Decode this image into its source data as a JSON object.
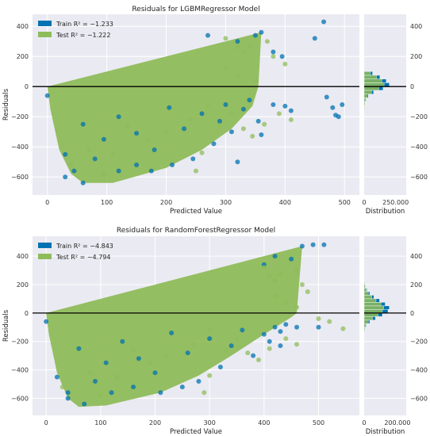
{
  "chart_data": [
    {
      "type": "scatter",
      "title": "Residuals for LGBMRegressor Model",
      "xlabel": "Predicted Value",
      "ylabel": "Residuals",
      "xlim": [
        -25,
        525
      ],
      "ylim": [
        -720,
        480
      ],
      "xticks": [
        0,
        100,
        200,
        300,
        400,
        500
      ],
      "xtick_labels": [
        "0",
        "100",
        "200",
        "300",
        "400",
        "500"
      ],
      "yticks": [
        -600,
        -400,
        -200,
        0,
        200,
        400
      ],
      "ytick_labels": [
        "−600",
        "−400",
        "−200",
        "0",
        "200",
        "400"
      ],
      "grid": true,
      "legend_position": "upper-left",
      "series": [
        {
          "name": "Train R² = −1.233",
          "color": "#0072b2",
          "points": [
            [
              0,
              -60
            ],
            [
              30,
              -450
            ],
            [
              45,
              -560
            ],
            [
              60,
              -250
            ],
            [
              80,
              -480
            ],
            [
              95,
              -350
            ],
            [
              120,
              -200
            ],
            [
              150,
              -310
            ],
            [
              180,
              -420
            ],
            [
              205,
              -140
            ],
            [
              230,
              -280
            ],
            [
              245,
              -480
            ],
            [
              260,
              -180
            ],
            [
              280,
              -380
            ],
            [
              290,
              -230
            ],
            [
              300,
              -120
            ],
            [
              310,
              -300
            ],
            [
              320,
              -500
            ],
            [
              330,
              -150
            ],
            [
              340,
              -90
            ],
            [
              355,
              -230
            ],
            [
              360,
              -320
            ],
            [
              380,
              -120
            ],
            [
              400,
              -130
            ],
            [
              410,
              -160
            ],
            [
              450,
              320
            ],
            [
              465,
              430
            ],
            [
              470,
              -70
            ],
            [
              480,
              -140
            ],
            [
              485,
              -190
            ],
            [
              490,
              -200
            ],
            [
              496,
              -120
            ],
            [
              270,
              340
            ],
            [
              320,
              300
            ],
            [
              350,
              340
            ],
            [
              360,
              360
            ],
            [
              380,
              230
            ],
            [
              395,
              200
            ],
            [
              120,
              -560
            ],
            [
              150,
              -520
            ],
            [
              60,
              -640
            ],
            [
              30,
              -600
            ],
            [
              175,
              -560
            ],
            [
              210,
              -520
            ]
          ]
        },
        {
          "name": "Test R² = −1.222",
          "color": "#8fbc5a",
          "points": [
            [
              40,
              -520
            ],
            [
              70,
              -420
            ],
            [
              110,
              -450
            ],
            [
              135,
              -260
            ],
            [
              170,
              -350
            ],
            [
              200,
              -300
            ],
            [
              240,
              -220
            ],
            [
              270,
              -120
            ],
            [
              290,
              -260
            ],
            [
              310,
              -180
            ],
            [
              330,
              -280
            ],
            [
              345,
              -330
            ],
            [
              365,
              -250
            ],
            [
              390,
              -180
            ],
            [
              410,
              -220
            ],
            [
              300,
              320
            ],
            [
              320,
              260
            ],
            [
              330,
              230
            ],
            [
              340,
              270
            ],
            [
              370,
              300
            ],
            [
              380,
              200
            ],
            [
              400,
              150
            ],
            [
              300,
              120
            ],
            [
              320,
              70
            ],
            [
              350,
              40
            ],
            [
              250,
              -560
            ],
            [
              95,
              -580
            ],
            [
              260,
              -440
            ]
          ]
        }
      ],
      "envelope": {
        "upper": [
          [
            0,
            0
          ],
          [
            360,
            360
          ]
        ],
        "lower": [
          [
            5,
            -150
          ],
          [
            20,
            -420
          ],
          [
            40,
            -580
          ],
          [
            60,
            -640
          ],
          [
            110,
            -640
          ],
          [
            200,
            -540
          ],
          [
            260,
            -420
          ],
          [
            310,
            -280
          ],
          [
            345,
            -130
          ],
          [
            355,
            0
          ]
        ]
      },
      "zero_line": 0,
      "histogram": {
        "title": "",
        "xlabel": "Distribution",
        "xticks": [
          0,
          250000
        ],
        "xtick_labels": [
          "0",
          "250.000"
        ],
        "xlim": [
          0,
          400000
        ],
        "bin_width": 25,
        "train_counts": [
          [
            -150,
            5000
          ],
          [
            -125,
            9000
          ],
          [
            -100,
            18000
          ],
          [
            -75,
            40000
          ],
          [
            -50,
            90000
          ],
          [
            -25,
            180000
          ],
          [
            0,
            240000
          ],
          [
            25,
            210000
          ],
          [
            50,
            150000
          ],
          [
            75,
            80000
          ]
        ],
        "test_counts": [
          [
            -150,
            4000
          ],
          [
            -125,
            7000
          ],
          [
            -100,
            14000
          ],
          [
            -75,
            30000
          ],
          [
            -50,
            70000
          ],
          [
            -25,
            140000
          ],
          [
            0,
            190000
          ],
          [
            25,
            170000
          ],
          [
            50,
            120000
          ],
          [
            75,
            60000
          ]
        ]
      }
    },
    {
      "type": "scatter",
      "title": "Residuals for RandomForestRegressor Model",
      "xlabel": "Predicted Value",
      "ylabel": "Residuals",
      "xlim": [
        -25,
        575
      ],
      "ylim": [
        -720,
        540
      ],
      "xticks": [
        0,
        100,
        200,
        300,
        400,
        500
      ],
      "xtick_labels": [
        "0",
        "100",
        "200",
        "300",
        "400",
        "500"
      ],
      "yticks": [
        -600,
        -400,
        -200,
        0,
        200,
        400
      ],
      "ytick_labels": [
        "−600",
        "−400",
        "−200",
        "0",
        "200",
        "400"
      ],
      "grid": true,
      "legend_position": "upper-left",
      "series": [
        {
          "name": "Train R² = −4.843",
          "color": "#0072b2",
          "points": [
            [
              0,
              -60
            ],
            [
              20,
              -450
            ],
            [
              40,
              -560
            ],
            [
              60,
              -250
            ],
            [
              90,
              -480
            ],
            [
              110,
              -350
            ],
            [
              140,
              -200
            ],
            [
              170,
              -320
            ],
            [
              200,
              -420
            ],
            [
              230,
              -140
            ],
            [
              260,
              -280
            ],
            [
              280,
              -480
            ],
            [
              300,
              -180
            ],
            [
              320,
              -380
            ],
            [
              340,
              -230
            ],
            [
              360,
              -120
            ],
            [
              380,
              -300
            ],
            [
              400,
              -150
            ],
            [
              420,
              -100
            ],
            [
              440,
              -80
            ],
            [
              460,
              -100
            ],
            [
              500,
              -100
            ],
            [
              430,
              -130
            ],
            [
              470,
              470
            ],
            [
              490,
              480
            ],
            [
              420,
              400
            ],
            [
              400,
              340
            ],
            [
              450,
              380
            ],
            [
              430,
              -230
            ],
            [
              410,
              -200
            ],
            [
              120,
              -560
            ],
            [
              160,
              -520
            ],
            [
              70,
              -640
            ],
            [
              40,
              -600
            ],
            [
              210,
              -560
            ],
            [
              250,
              -520
            ],
            [
              510,
              480
            ]
          ]
        },
        {
          "name": "Test R² = −4.794",
          "color": "#8fbc5a",
          "points": [
            [
              30,
              -520
            ],
            [
              80,
              -420
            ],
            [
              130,
              -450
            ],
            [
              160,
              -260
            ],
            [
              190,
              -350
            ],
            [
              220,
              -300
            ],
            [
              270,
              -220
            ],
            [
              300,
              -120
            ],
            [
              330,
              -260
            ],
            [
              350,
              -180
            ],
            [
              370,
              -280
            ],
            [
              390,
              -330
            ],
            [
              410,
              -250
            ],
            [
              440,
              -180
            ],
            [
              460,
              -220
            ],
            [
              400,
              320
            ],
            [
              410,
              260
            ],
            [
              420,
              230
            ],
            [
              430,
              270
            ],
            [
              460,
              300
            ],
            [
              470,
              200
            ],
            [
              480,
              150
            ],
            [
              420,
              120
            ],
            [
              440,
              70
            ],
            [
              460,
              40
            ],
            [
              290,
              -560
            ],
            [
              100,
              -580
            ],
            [
              300,
              -440
            ],
            [
              545,
              -110
            ],
            [
              500,
              -40
            ],
            [
              520,
              -60
            ]
          ]
        }
      ],
      "envelope": {
        "upper": [
          [
            0,
            0
          ],
          [
            470,
            470
          ]
        ],
        "lower": [
          [
            5,
            -150
          ],
          [
            20,
            -420
          ],
          [
            40,
            -600
          ],
          [
            60,
            -660
          ],
          [
            110,
            -650
          ],
          [
            210,
            -560
          ],
          [
            280,
            -440
          ],
          [
            340,
            -300
          ],
          [
            400,
            -150
          ],
          [
            450,
            -30
          ],
          [
            460,
            0
          ]
        ]
      },
      "zero_line": 0,
      "histogram": {
        "title": "",
        "xlabel": "Distribution",
        "xticks": [
          0,
          200000
        ],
        "xtick_labels": [
          "0",
          "200.000"
        ],
        "xlim": [
          0,
          300000
        ],
        "bin_width": 25,
        "train_counts": [
          [
            -125,
            6000
          ],
          [
            -100,
            15000
          ],
          [
            -75,
            40000
          ],
          [
            -50,
            80000
          ],
          [
            -25,
            130000
          ],
          [
            0,
            170000
          ],
          [
            25,
            180000
          ],
          [
            50,
            150000
          ],
          [
            75,
            110000
          ],
          [
            100,
            70000
          ],
          [
            125,
            40000
          ],
          [
            150,
            20000
          ],
          [
            175,
            10000
          ],
          [
            200,
            4000
          ]
        ],
        "test_counts": [
          [
            -125,
            5000
          ],
          [
            -100,
            12000
          ],
          [
            -75,
            30000
          ],
          [
            -50,
            60000
          ],
          [
            -25,
            100000
          ],
          [
            0,
            130000
          ],
          [
            25,
            140000
          ],
          [
            50,
            120000
          ],
          [
            75,
            85000
          ],
          [
            100,
            55000
          ],
          [
            125,
            30000
          ],
          [
            150,
            15000
          ],
          [
            175,
            7000
          ],
          [
            200,
            3000
          ]
        ]
      }
    }
  ]
}
